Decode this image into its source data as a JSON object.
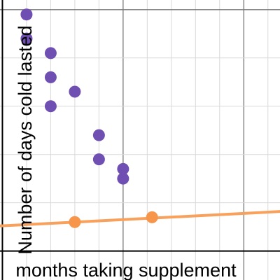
{
  "chart_data": {
    "type": "scatter",
    "title": "",
    "xlabel": "months taking supplement",
    "ylabel": "Number of days cold lasted",
    "xlim": [
      -0.1,
      11.5
    ],
    "ylim": [
      -0.6,
      5.2
    ],
    "x_gridlines": [
      0,
      1,
      2,
      3,
      4,
      5,
      6,
      7,
      8,
      9,
      10,
      11
    ],
    "y_gridlines": [
      0,
      1,
      2,
      3,
      4,
      5
    ],
    "grid": true,
    "series": [
      {
        "color": "#6f4fb2",
        "points": [
          {
            "x": 1.0,
            "y": 4.9
          },
          {
            "x": 1.0,
            "y": 4.4
          },
          {
            "x": 2.0,
            "y": 4.1
          },
          {
            "x": 2.0,
            "y": 3.6
          },
          {
            "x": 2.0,
            "y": 3.0
          },
          {
            "x": 3.0,
            "y": 3.3
          },
          {
            "x": 4.0,
            "y": 2.4
          },
          {
            "x": 4.0,
            "y": 1.9
          },
          {
            "x": 5.0,
            "y": 1.7
          },
          {
            "x": 5.0,
            "y": 1.5
          }
        ]
      },
      {
        "color": "#f7954a",
        "points": [
          {
            "x": 3.0,
            "y": 0.6
          },
          {
            "x": 6.2,
            "y": 0.7
          }
        ],
        "trend_line": {
          "slope": 0.0258,
          "intercept": 0.522,
          "color": "#f8a15c"
        }
      }
    ]
  }
}
